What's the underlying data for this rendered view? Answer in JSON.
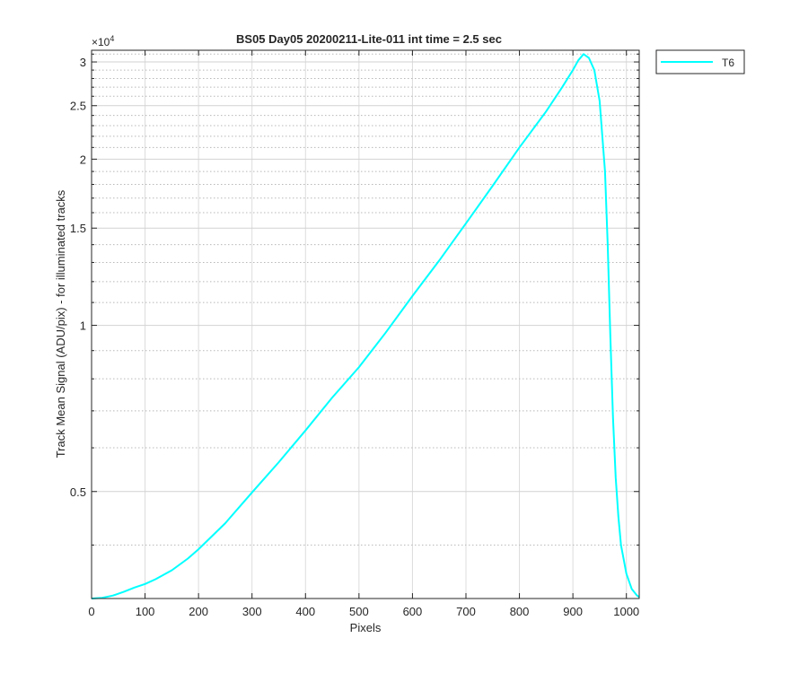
{
  "chart_data": {
    "type": "line",
    "title": "BS05 Day05 20200211-Lite-011 int time = 2.5 sec",
    "xlabel": "Pixels",
    "ylabel": "Track Mean Signal (ADU/pix) - for illuminated tracks",
    "xlim": [
      0,
      1024
    ],
    "ylim": [
      3200,
      31500
    ],
    "yscale": "log",
    "y_exponent_label": "×10",
    "y_exponent_power": "4",
    "x_ticks": [
      0,
      100,
      200,
      300,
      400,
      500,
      600,
      700,
      800,
      900,
      1000
    ],
    "y_ticks": [
      5000,
      10000,
      15000,
      20000,
      25000,
      30000
    ],
    "y_tick_labels": [
      "0.5",
      "1",
      "1.5",
      "2",
      "2.5",
      "3"
    ],
    "y_minor_ticks": [
      4000,
      6000,
      7000,
      8000,
      9000,
      11000,
      12000,
      13000,
      14000,
      16000,
      17000,
      18000,
      19000,
      21000,
      22000,
      23000,
      24000,
      26000,
      27000,
      28000,
      29000,
      31000
    ],
    "grid": true,
    "legend_position": "outside-top-right",
    "series": [
      {
        "name": "T6",
        "color": "#00FFFF",
        "x": [
          0,
          20,
          40,
          60,
          80,
          100,
          120,
          150,
          180,
          200,
          250,
          300,
          350,
          400,
          450,
          500,
          550,
          600,
          650,
          700,
          750,
          800,
          850,
          880,
          900,
          910,
          920,
          930,
          940,
          950,
          960,
          965,
          970,
          975,
          980,
          985,
          990,
          1000,
          1010,
          1020,
          1024
        ],
        "y": [
          3200,
          3210,
          3240,
          3290,
          3350,
          3400,
          3470,
          3600,
          3780,
          3930,
          4380,
          4980,
          5650,
          6450,
          7400,
          8400,
          9700,
          11300,
          13100,
          15300,
          17900,
          21000,
          24400,
          27000,
          29000,
          30200,
          31000,
          30500,
          29000,
          25500,
          19000,
          14000,
          9600,
          6800,
          5300,
          4500,
          4000,
          3550,
          3330,
          3240,
          3220
        ]
      }
    ]
  }
}
